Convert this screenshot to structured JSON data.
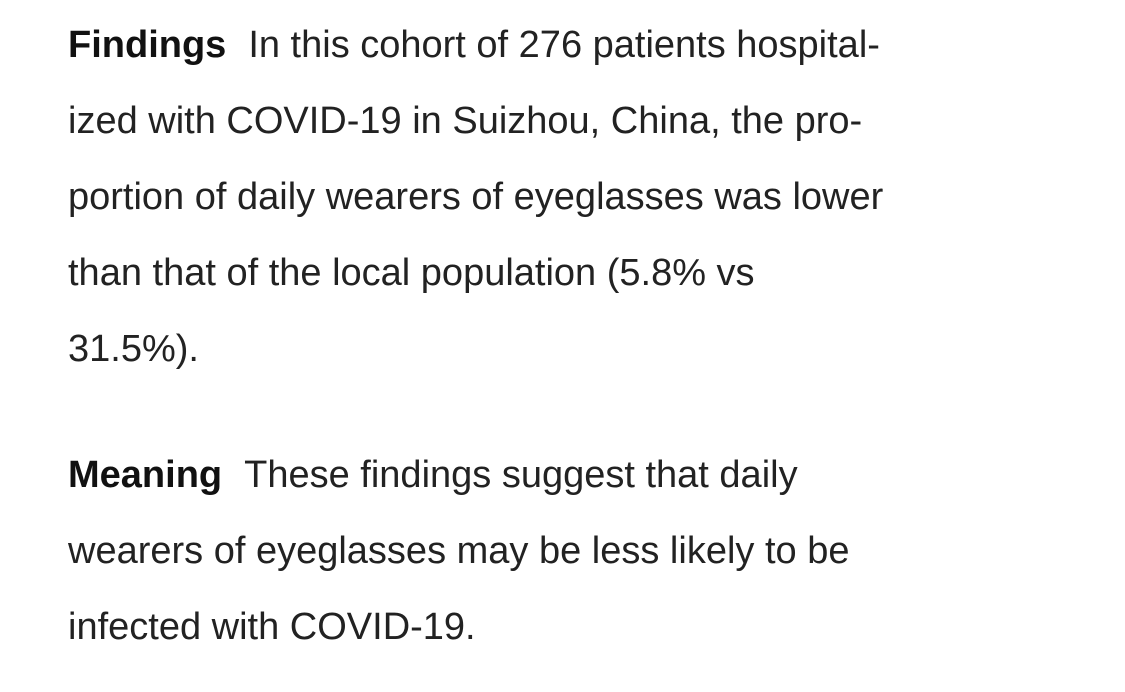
{
  "paragraphs": [
    {
      "label": "Findings",
      "lines": [
        "In this cohort of 276 patients hospital-",
        "ized with COVID-19 in Suizhou, China, the pro-",
        "portion of daily wearers of eyeglasses was lower",
        "than that of the local population (5.8% vs",
        "31.5%)."
      ]
    },
    {
      "label": "Meaning",
      "lines": [
        "These findings suggest that daily",
        "wearers of eyeglasses may be less likely to be",
        "infected with COVID-19."
      ]
    }
  ]
}
